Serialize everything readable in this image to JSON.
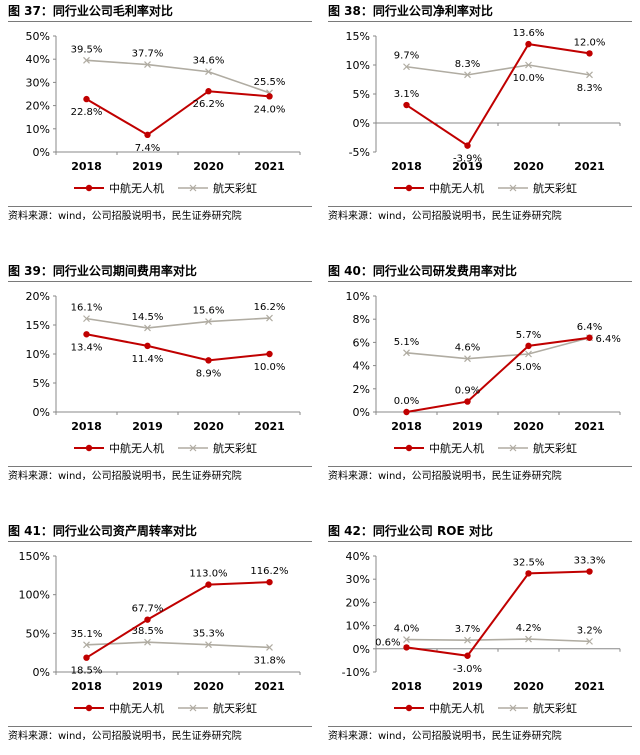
{
  "colors": {
    "company": "#c00000",
    "peer": "#b0aca2"
  },
  "charts": [
    {
      "title": "图 37：同行业公司毛利率对比",
      "source": "资料来源：wind，公司招股说明书，民生证券研究院"
    },
    {
      "title": "图 38：同行业公司净利率对比",
      "source": "资料来源：wind，公司招股说明书，民生证券研究院"
    },
    {
      "title": "图 39：同行业公司期间费用率对比",
      "source": "资料来源：wind，公司招股说明书，民生证券研究院"
    },
    {
      "title": "图 40：同行业公司研发费用率对比",
      "source": "资料来源：wind，公司招股说明书，民生证券研究院"
    },
    {
      "title": "图 41：同行业公司资产周转率对比",
      "source": "资料来源：wind，公司招股说明书，民生证券研究院"
    },
    {
      "title": "图 42：同行业公司 ROE 对比",
      "source": "资料来源：wind，公司招股说明书，民生证券研究院"
    }
  ],
  "chart_data": [
    {
      "type": "line",
      "title": "图 37：同行业公司毛利率对比",
      "categories": [
        "2018",
        "2019",
        "2020",
        "2021"
      ],
      "yticks": [
        "0%",
        "10%",
        "20%",
        "30%",
        "40%",
        "50%"
      ],
      "ylim": [
        0,
        50
      ],
      "series": [
        {
          "name": "中航无人机",
          "values": [
            22.8,
            7.4,
            26.2,
            24.0
          ],
          "labels": [
            "22.8%",
            "7.4%",
            "26.2%",
            "24.0%"
          ]
        },
        {
          "name": "航天彩虹",
          "values": [
            39.5,
            37.7,
            34.6,
            25.5
          ],
          "labels": [
            "39.5%",
            "37.7%",
            "34.6%",
            "25.5%"
          ]
        }
      ],
      "legend": "bottom",
      "grid": false
    },
    {
      "type": "line",
      "title": "图 38：同行业公司净利率对比",
      "categories": [
        "2018",
        "2019",
        "2020",
        "2021"
      ],
      "yticks": [
        "-5%",
        "0%",
        "5%",
        "10%",
        "15%"
      ],
      "ylim": [
        -5,
        15
      ],
      "series": [
        {
          "name": "中航无人机",
          "values": [
            3.1,
            -3.9,
            13.6,
            12.0
          ],
          "labels": [
            "3.1%",
            "-3.9%",
            "13.6%",
            "12.0%"
          ]
        },
        {
          "name": "航天彩虹",
          "values": [
            9.7,
            8.3,
            10.0,
            8.3
          ],
          "labels": [
            "9.7%",
            "8.3%",
            "10.0%",
            "8.3%"
          ]
        }
      ],
      "legend": "bottom",
      "grid": false
    },
    {
      "type": "line",
      "title": "图 39：同行业公司期间费用率对比",
      "categories": [
        "2018",
        "2019",
        "2020",
        "2021"
      ],
      "yticks": [
        "0%",
        "5%",
        "10%",
        "15%",
        "20%"
      ],
      "ylim": [
        0,
        20
      ],
      "series": [
        {
          "name": "中航无人机",
          "values": [
            13.4,
            11.4,
            8.9,
            10.0
          ],
          "labels": [
            "13.4%",
            "11.4%",
            "8.9%",
            "10.0%"
          ]
        },
        {
          "name": "航天彩虹",
          "values": [
            16.1,
            14.5,
            15.6,
            16.2
          ],
          "labels": [
            "16.1%",
            "14.5%",
            "15.6%",
            "16.2%"
          ]
        }
      ],
      "legend": "bottom",
      "grid": false
    },
    {
      "type": "line",
      "title": "图 40：同行业公司研发费用率对比",
      "categories": [
        "2018",
        "2019",
        "2020",
        "2021"
      ],
      "yticks": [
        "0%",
        "2%",
        "4%",
        "6%",
        "8%",
        "10%"
      ],
      "ylim": [
        0,
        10
      ],
      "series": [
        {
          "name": "中航无人机",
          "values": [
            0.0,
            0.9,
            5.7,
            6.4
          ],
          "labels": [
            "0.0%",
            "0.9%",
            "5.7%",
            "6.4%"
          ]
        },
        {
          "name": "航天彩虹",
          "values": [
            5.1,
            4.6,
            5.0,
            6.4
          ],
          "labels": [
            "5.1%",
            "4.6%",
            "5.0%",
            "6.4%"
          ]
        }
      ],
      "legend": "bottom",
      "grid": false
    },
    {
      "type": "line",
      "title": "图 41：同行业公司资产周转率对比",
      "categories": [
        "2018",
        "2019",
        "2020",
        "2021"
      ],
      "yticks": [
        "0%",
        "50%",
        "100%",
        "150%"
      ],
      "ylim": [
        0,
        150
      ],
      "series": [
        {
          "name": "中航无人机",
          "values": [
            18.5,
            67.7,
            113.0,
            116.2
          ],
          "labels": [
            "18.5%",
            "67.7%",
            "113.0%",
            "116.2%"
          ]
        },
        {
          "name": "航天彩虹",
          "values": [
            35.1,
            38.5,
            35.3,
            31.8
          ],
          "labels": [
            "35.1%",
            "38.5%",
            "35.3%",
            "31.8%"
          ]
        }
      ],
      "legend": "bottom",
      "grid": false
    },
    {
      "type": "line",
      "title": "图 42：同行业公司 ROE 对比",
      "categories": [
        "2018",
        "2019",
        "2020",
        "2021"
      ],
      "yticks": [
        "-10%",
        "0%",
        "10%",
        "20%",
        "30%",
        "40%"
      ],
      "ylim": [
        -10,
        40
      ],
      "series": [
        {
          "name": "中航无人机",
          "values": [
            0.6,
            -3.0,
            32.5,
            33.3
          ],
          "labels": [
            "0.6%",
            "-3.0%",
            "32.5%",
            "33.3%"
          ]
        },
        {
          "name": "航天彩虹",
          "values": [
            4.0,
            3.7,
            4.2,
            3.2
          ],
          "labels": [
            "4.0%",
            "3.7%",
            "4.2%",
            "3.2%"
          ]
        }
      ],
      "legend": "bottom",
      "grid": false
    }
  ]
}
